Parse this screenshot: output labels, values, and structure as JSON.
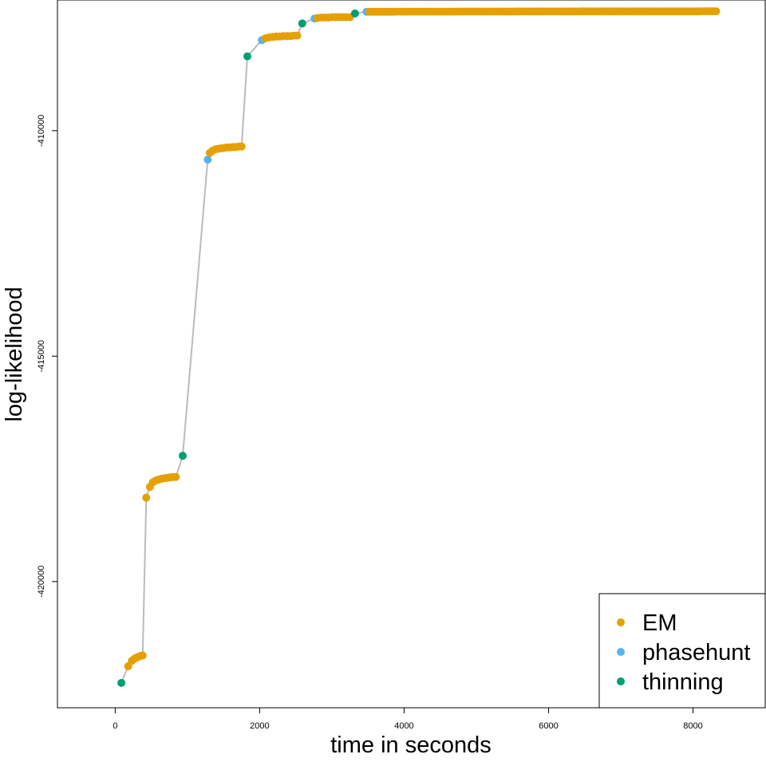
{
  "chart_data": {
    "type": "scatter",
    "xlabel": "time in seconds",
    "ylabel": "log-likelihood",
    "xlim": [
      -800,
      9000
    ],
    "ylim": [
      -422800,
      -407100
    ],
    "x_ticks": [
      0,
      2000,
      4000,
      6000,
      8000
    ],
    "y_ticks": [
      -420000,
      -415000,
      -410000
    ],
    "tick_labels_x": [
      "0",
      "2000",
      "4000",
      "6000",
      "8000"
    ],
    "tick_labels_y": [
      "-420000",
      "-415000",
      "-410000"
    ],
    "grid": false,
    "legend_position": "bottom-right",
    "line_color": "#bbbbbb",
    "series": [
      {
        "name": "EM",
        "color": "#E69F00"
      },
      {
        "name": "phasehunt",
        "color": "#56B4E9"
      },
      {
        "name": "thinning",
        "color": "#009E73"
      }
    ],
    "segments": [
      {
        "series": "thinning",
        "x": [
          85
        ],
        "y": [
          -422250
        ]
      },
      {
        "series": "EM",
        "x": [
          180,
          230,
          260,
          290,
          320,
          350,
          380
        ],
        "y": [
          -421880,
          -421760,
          -421720,
          -421690,
          -421670,
          -421650,
          -421640
        ]
      },
      {
        "series": "EM",
        "x": [
          430,
          480,
          520,
          560,
          600,
          640,
          680,
          720,
          760,
          800,
          840
        ],
        "y": [
          -418140,
          -417900,
          -417800,
          -417760,
          -417740,
          -417720,
          -417710,
          -417700,
          -417690,
          -417680,
          -417680
        ]
      },
      {
        "series": "thinning",
        "x": [
          935
        ],
        "y": [
          -417210
        ]
      },
      {
        "series": "phasehunt",
        "x": [
          1280
        ],
        "y": [
          -410640
        ]
      },
      {
        "series": "EM",
        "x": [
          1310,
          1350,
          1390,
          1430,
          1470,
          1510,
          1550,
          1590,
          1630,
          1670,
          1710,
          1750
        ],
        "y": [
          -410490,
          -410440,
          -410410,
          -410400,
          -410390,
          -410380,
          -410370,
          -410370,
          -410360,
          -410360,
          -410350,
          -410350
        ]
      },
      {
        "series": "thinning",
        "x": [
          1830
        ],
        "y": [
          -408350
        ]
      },
      {
        "series": "phasehunt",
        "x": [
          2030
        ],
        "y": [
          -407990
        ]
      },
      {
        "series": "EM",
        "x": [
          2080,
          2130,
          2180,
          2230,
          2280,
          2330,
          2380,
          2430,
          2480,
          2520
        ],
        "y": [
          -407950,
          -407930,
          -407920,
          -407910,
          -407910,
          -407900,
          -407900,
          -407900,
          -407890,
          -407890
        ]
      },
      {
        "series": "thinning",
        "x": [
          2590
        ],
        "y": [
          -407620
        ]
      },
      {
        "series": "phasehunt",
        "x": [
          2760
        ],
        "y": [
          -407510
        ]
      },
      {
        "series": "EM",
        "x": [
          2800,
          2850,
          2900,
          2950,
          3000,
          3050,
          3100,
          3150,
          3200,
          3250
        ],
        "y": [
          -407500,
          -407490,
          -407490,
          -407490,
          -407480,
          -407480,
          -407480,
          -407480,
          -407480,
          -407480
        ]
      },
      {
        "series": "thinning",
        "x": [
          3320
        ],
        "y": [
          -407400
        ]
      },
      {
        "series": "phasehunt",
        "x": [
          3480
        ],
        "y": [
          -407360
        ]
      },
      {
        "series": "EM",
        "x_start": 3520,
        "x_end": 8320,
        "x_step": 40,
        "y_start": -407360,
        "y_end": -407350
      }
    ]
  }
}
